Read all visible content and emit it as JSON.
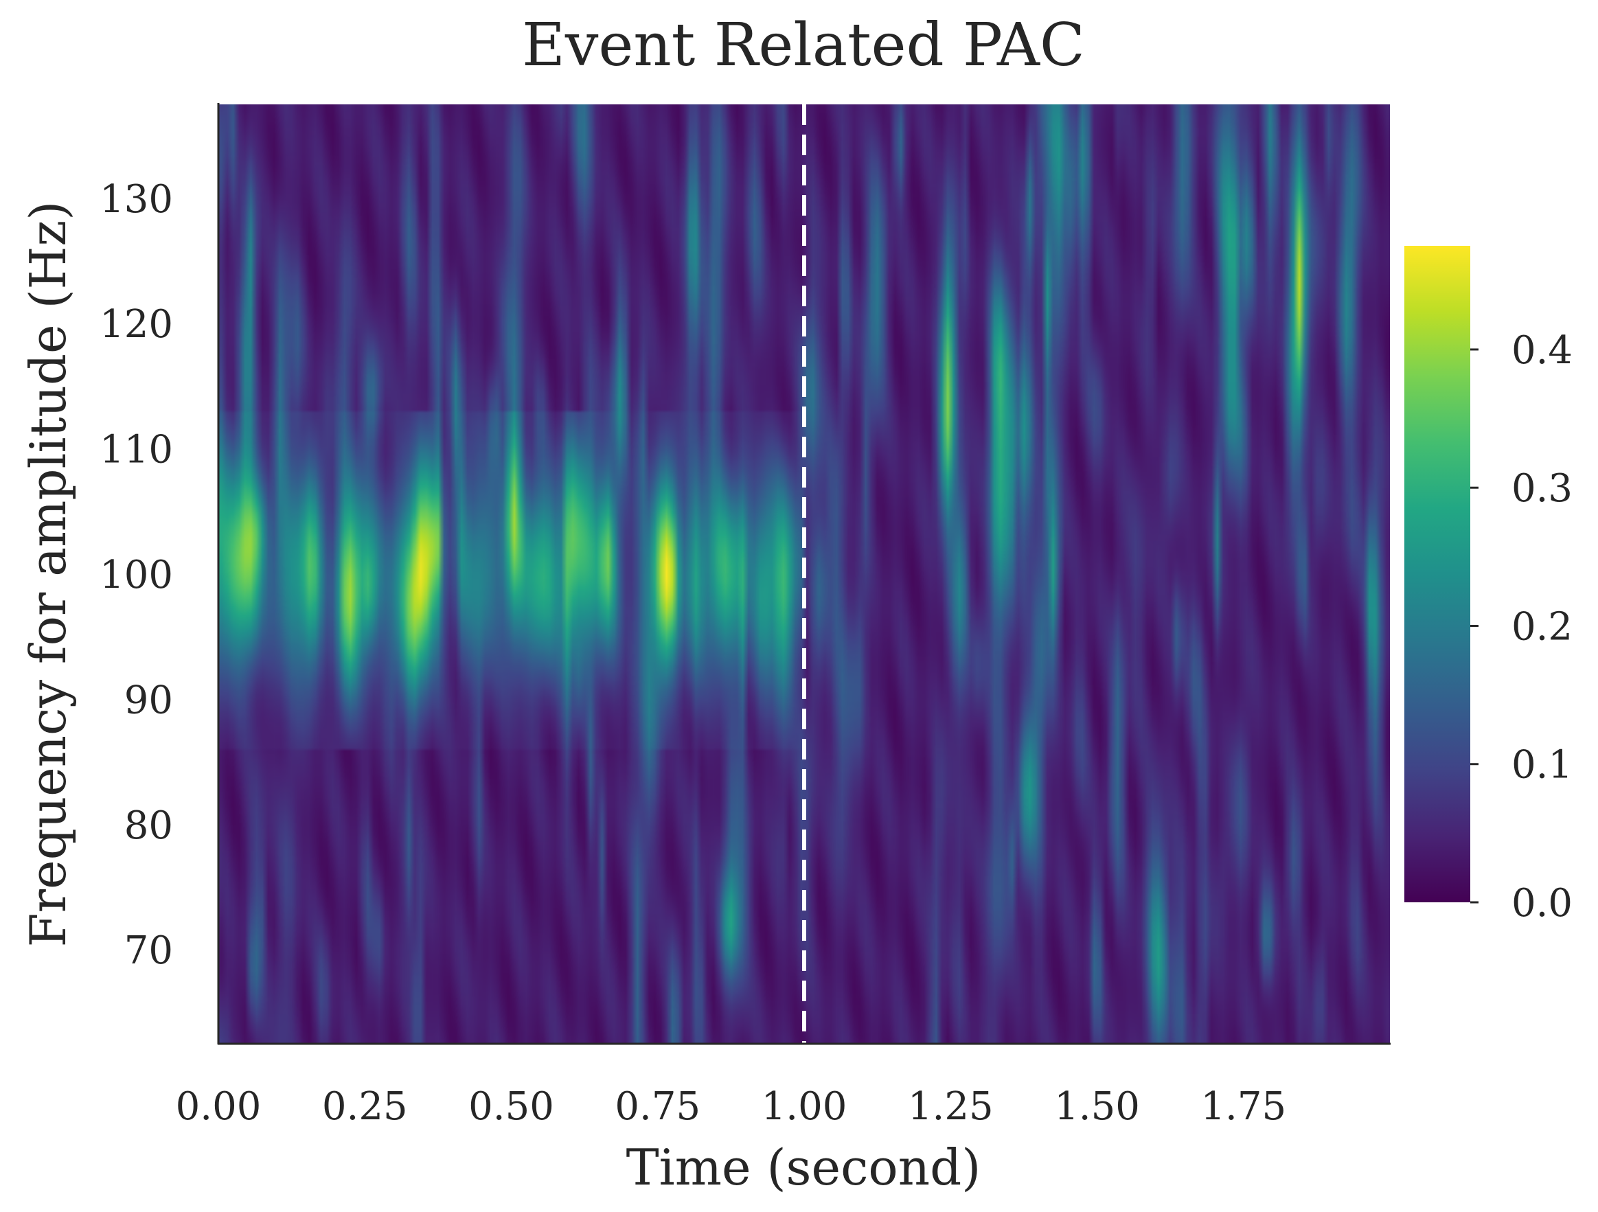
{
  "chart_data": {
    "type": "heatmap",
    "title": "Event Related PAC",
    "xlabel": "Time (second)",
    "ylabel": "Frequency for amplitude (Hz)",
    "xlim": [
      0,
      2.0
    ],
    "ylim": [
      62.5,
      137.5
    ],
    "xticks": [
      0,
      0.25,
      0.5,
      0.75,
      1.0,
      1.25,
      1.5,
      1.75
    ],
    "xtick_labels": [
      "0.00",
      "0.25",
      "0.50",
      "0.75",
      "1.00",
      "1.25",
      "1.50",
      "1.75"
    ],
    "yticks": [
      70,
      80,
      90,
      100,
      110,
      120,
      130
    ],
    "ytick_labels": [
      "70",
      "80",
      "90",
      "100",
      "110",
      "120",
      "130"
    ],
    "colormap": "viridis",
    "colorbar": {
      "vmin": 0.0,
      "vmax": 0.475,
      "ticks": [
        0.0,
        0.1,
        0.2,
        0.3,
        0.4
      ],
      "tick_labels": [
        "0.0",
        "0.1",
        "0.2",
        "0.3",
        "0.4"
      ]
    },
    "event_marker": {
      "x": 1.0,
      "style": "dashed",
      "color": "#ffffff"
    },
    "grid": false,
    "features": {
      "coupling_band_hz": [
        86,
        113
      ],
      "coupling_band_peak_hz": 100,
      "coupling_time_window_s": [
        0,
        1.0
      ],
      "peak_values": [
        {
          "t": 0.16,
          "f": 100,
          "v": 0.45
        },
        {
          "t": 0.22,
          "f": 97,
          "v": 0.43
        },
        {
          "t": 0.35,
          "f": 101,
          "v": 0.47
        },
        {
          "t": 0.5,
          "f": 103,
          "v": 0.4
        },
        {
          "t": 0.61,
          "f": 104,
          "v": 0.42
        },
        {
          "t": 0.76,
          "f": 99,
          "v": 0.4
        },
        {
          "t": 0.93,
          "f": 99,
          "v": 0.39
        }
      ],
      "background_level": 0.06
    }
  }
}
